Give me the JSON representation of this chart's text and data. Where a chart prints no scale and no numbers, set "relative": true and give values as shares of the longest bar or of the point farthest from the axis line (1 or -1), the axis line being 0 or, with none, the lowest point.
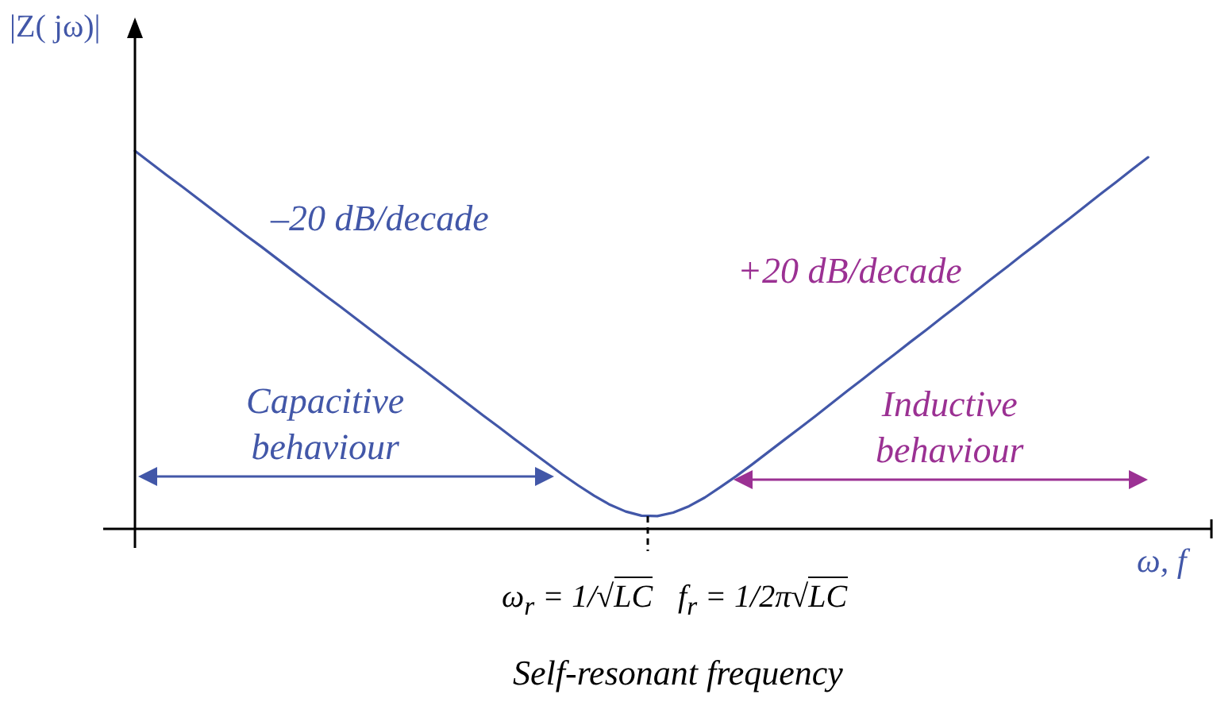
{
  "chart_data": {
    "type": "line",
    "xlabel": "ω, f",
    "ylabel": "|Z( jω)|",
    "annotations": [
      "–20 dB/decade",
      "+20 dB/decade",
      "Capacitive behaviour",
      "Inductive behaviour",
      "ω$_{r}$ = 1/√LC",
      "f$_{r}$ = 1/2π√LC",
      "Self-resonant frequency"
    ],
    "categories": [
      null,
      null,
      null,
      null,
      null,
      null,
      null,
      null,
      null,
      null,
      null,
      null,
      null,
      null,
      null,
      null,
      null,
      null,
      null,
      null,
      null,
      null,
      null,
      null,
      null,
      null,
      null,
      null,
      null,
      null,
      null,
      null,
      null,
      null,
      null,
      null,
      null,
      null,
      null,
      null,
      null,
      null,
      null,
      null,
      null,
      null,
      null,
      null,
      null,
      null,
      null,
      null,
      null,
      null,
      null,
      null,
      null,
      null,
      null,
      null,
      null,
      null,
      null,
      null,
      null,
      null,
      null,
      null,
      null
    ],
    "values": [
      1.0,
      0.968,
      0.936,
      0.905,
      0.873,
      0.841,
      0.809,
      0.777,
      0.746,
      0.714,
      0.682,
      0.65,
      0.618,
      0.587,
      0.555,
      0.523,
      0.491,
      0.459,
      0.428,
      0.396,
      0.364,
      0.332,
      0.3,
      0.269,
      0.237,
      0.206,
      0.175,
      0.144,
      0.115,
      0.088,
      0.064,
      0.046,
      0.035,
      0.034,
      0.043,
      0.06,
      0.083,
      0.111,
      0.14,
      0.171,
      0.203,
      0.235,
      0.267,
      0.299,
      0.332,
      0.365,
      0.397,
      0.43,
      0.462,
      0.495,
      0.527,
      0.56,
      0.592,
      0.625,
      0.658,
      0.69,
      0.723,
      0.755,
      0.788,
      0.82,
      0.853,
      0.886,
      0.918,
      0.951,
      0.983,
      null,
      null,
      null,
      null
    ],
    "color": "#4257a8",
    "relative": true,
    "marker": "none",
    "line_style": "solid",
    "tick_labels": false
  }
}
